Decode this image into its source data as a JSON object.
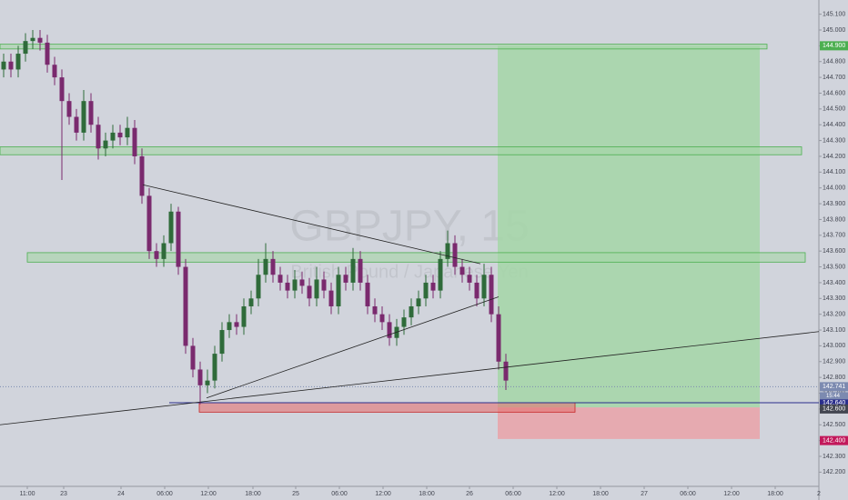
{
  "chart_data": {
    "type": "candlestick",
    "watermark_title": "GBPJPY, 15",
    "watermark_subtitle": "British Pound / Japanese Yen",
    "up_color": "#2f6b3a",
    "down_color": "#7a2a6e",
    "open": [
      144.75,
      144.8,
      144.75,
      144.85,
      144.93,
      144.95,
      144.92,
      144.78,
      144.7,
      144.55,
      144.45,
      144.35,
      144.55,
      144.4,
      144.25,
      144.3,
      144.35,
      144.32,
      144.38,
      144.2,
      143.95,
      143.6,
      143.55,
      143.65,
      143.85,
      143.5,
      143.0,
      142.85,
      142.75,
      142.78,
      142.95,
      143.1,
      143.15,
      143.12,
      143.25,
      143.3,
      143.45,
      143.55,
      143.45,
      143.4,
      143.35,
      143.42,
      143.38,
      143.3,
      143.42,
      143.35,
      143.25,
      143.45,
      143.4,
      143.55,
      143.4,
      143.25,
      143.2,
      143.15,
      143.05,
      143.12,
      143.18,
      143.25,
      143.3,
      143.4,
      143.35,
      143.55,
      143.65,
      143.5,
      143.45,
      143.4,
      143.3,
      143.45,
      143.2,
      142.9
    ],
    "high": [
      144.85,
      144.85,
      144.9,
      144.98,
      145.0,
      145.0,
      144.97,
      144.83,
      144.75,
      144.6,
      144.5,
      144.62,
      144.6,
      144.45,
      144.35,
      144.4,
      144.4,
      144.45,
      144.43,
      144.25,
      144.0,
      143.65,
      143.7,
      143.9,
      143.88,
      143.55,
      143.05,
      142.9,
      142.85,
      143.0,
      143.15,
      143.2,
      143.2,
      143.3,
      143.35,
      143.55,
      143.65,
      143.6,
      143.5,
      143.45,
      143.48,
      143.47,
      143.43,
      143.5,
      143.47,
      143.4,
      143.5,
      143.5,
      143.62,
      143.6,
      143.45,
      143.3,
      143.25,
      143.2,
      143.17,
      143.23,
      143.3,
      143.35,
      143.45,
      143.45,
      143.6,
      143.73,
      143.7,
      143.55,
      143.5,
      143.45,
      143.52,
      143.5,
      143.25,
      142.95
    ],
    "low": [
      144.7,
      144.7,
      144.7,
      144.8,
      144.88,
      144.87,
      144.73,
      144.65,
      144.05,
      144.4,
      144.3,
      144.3,
      144.35,
      144.18,
      144.2,
      144.25,
      144.27,
      144.27,
      144.15,
      143.9,
      143.55,
      143.5,
      143.5,
      143.6,
      143.45,
      142.95,
      142.8,
      142.63,
      142.7,
      142.73,
      142.9,
      143.05,
      143.07,
      143.07,
      143.2,
      143.25,
      143.4,
      143.4,
      143.35,
      143.3,
      143.3,
      143.33,
      143.25,
      143.25,
      143.3,
      143.2,
      143.2,
      143.35,
      143.35,
      143.35,
      143.2,
      143.15,
      143.1,
      143.0,
      143.0,
      143.07,
      143.13,
      143.2,
      143.25,
      143.3,
      143.3,
      143.5,
      143.45,
      143.4,
      143.35,
      143.25,
      143.25,
      143.15,
      142.85,
      142.72
    ],
    "close": [
      144.8,
      144.75,
      144.85,
      144.93,
      144.95,
      144.92,
      144.78,
      144.7,
      144.55,
      144.45,
      144.35,
      144.55,
      144.4,
      144.25,
      144.3,
      144.35,
      144.32,
      144.38,
      144.2,
      143.95,
      143.6,
      143.55,
      143.65,
      143.85,
      143.5,
      143.0,
      142.85,
      142.75,
      142.78,
      142.95,
      143.1,
      143.15,
      143.12,
      143.25,
      143.3,
      143.45,
      143.55,
      143.45,
      143.4,
      143.35,
      143.42,
      143.38,
      143.3,
      143.42,
      143.35,
      143.25,
      143.45,
      143.4,
      143.55,
      143.4,
      143.25,
      143.2,
      143.15,
      143.05,
      143.12,
      143.18,
      143.25,
      143.3,
      143.4,
      143.35,
      143.55,
      143.65,
      143.5,
      143.45,
      143.4,
      143.3,
      143.45,
      143.2,
      142.9,
      142.78
    ],
    "xlim": [
      -0.5,
      112
    ],
    "ylim": [
      142.11,
      145.19
    ],
    "xticks": [
      {
        "value": 3.25,
        "label": "11:00"
      },
      {
        "value": 8.25,
        "label": "23"
      },
      {
        "value": 16.125,
        "label": "24"
      },
      {
        "value": 22.125,
        "label": "06:00"
      },
      {
        "value": 28.125,
        "label": "12:00"
      },
      {
        "value": 34.25,
        "label": "18:00"
      },
      {
        "value": 40.125,
        "label": "25"
      },
      {
        "value": 46.125,
        "label": "06:00"
      },
      {
        "value": 52.125,
        "label": "12:00"
      },
      {
        "value": 58.125,
        "label": "18:00"
      },
      {
        "value": 64,
        "label": "26"
      },
      {
        "value": 70,
        "label": "06:00"
      },
      {
        "value": 76,
        "label": "12:00"
      },
      {
        "value": 82,
        "label": "18:00"
      },
      {
        "value": 88,
        "label": "27"
      },
      {
        "value": 94,
        "label": "06:00"
      },
      {
        "value": 100,
        "label": "12:00"
      },
      {
        "value": 106,
        "label": "18:00"
      },
      {
        "value": 112,
        "label": "2"
      }
    ],
    "yticks": [
      {
        "value": 142.2,
        "label": "142.200"
      },
      {
        "value": 142.3,
        "label": "142.300"
      },
      {
        "value": 142.4,
        "label": "142.400"
      },
      {
        "value": 142.5,
        "label": "142.500"
      },
      {
        "value": 142.6,
        "label": "142.600"
      },
      {
        "value": 142.7,
        "label": "142.700"
      },
      {
        "value": 142.8,
        "label": "142.800"
      },
      {
        "value": 142.9,
        "label": "142.900"
      },
      {
        "value": 143,
        "label": "143.000"
      },
      {
        "value": 143.1,
        "label": "143.100"
      },
      {
        "value": 143.2,
        "label": "143.200"
      },
      {
        "value": 143.3,
        "label": "143.300"
      },
      {
        "value": 143.4,
        "label": "143.400"
      },
      {
        "value": 143.5,
        "label": "143.500"
      },
      {
        "value": 143.6,
        "label": "143.600"
      },
      {
        "value": 143.7,
        "label": "143.700"
      },
      {
        "value": 143.8,
        "label": "143.800"
      },
      {
        "value": 143.9,
        "label": "143.900"
      },
      {
        "value": 144,
        "label": "144.000"
      },
      {
        "value": 144.1,
        "label": "144.100"
      },
      {
        "value": 144.2,
        "label": "144.200"
      },
      {
        "value": 144.3,
        "label": "144.300"
      },
      {
        "value": 144.4,
        "label": "144.400"
      },
      {
        "value": 144.5,
        "label": "144.500"
      },
      {
        "value": 144.6,
        "label": "144.600"
      },
      {
        "value": 144.7,
        "label": "144.700"
      },
      {
        "value": 144.8,
        "label": "144.800"
      },
      {
        "value": 144.9,
        "label": "144.900"
      },
      {
        "value": 145,
        "label": "145.000"
      },
      {
        "value": 145.1,
        "label": "145.100"
      }
    ],
    "zones": [
      {
        "x": [
          -0.5,
          104.875
        ],
        "y": [
          144.91,
          144.88
        ],
        "color": "#a5d6a7"
      },
      {
        "x": [
          -0.5,
          109.625
        ],
        "y": [
          144.26,
          144.21
        ],
        "color": "#a5d6a7"
      },
      {
        "x": [
          3.25,
          110.125
        ],
        "y": [
          143.59,
          143.53
        ],
        "color": "#a5d6a7"
      },
      {
        "x": [
          26.875,
          78.5
        ],
        "y": [
          142.64,
          142.58
        ],
        "color": "#e57373"
      }
    ],
    "position": {
      "x": [
        67.875,
        103.875
      ],
      "entry": 142.61,
      "target": 144.9,
      "stop": 142.41,
      "profit_color": "#a5d6a7",
      "loss_color": "#e8a5ab"
    },
    "trendlines": [
      {
        "x": [
          19.125,
          65.5
        ],
        "y": [
          144.02,
          143.52
        ],
        "color": "#222"
      },
      {
        "x": [
          27.875,
          68
        ],
        "y": [
          142.67,
          143.31
        ],
        "color": "#222"
      },
      {
        "x": [
          -0.5,
          112
        ],
        "y": [
          142.5,
          143.09
        ],
        "color": "#222"
      }
    ],
    "hline": {
      "value": 142.64,
      "color": "#2a2e8c"
    },
    "price_labels": [
      {
        "value": 144.9,
        "label": "144.900",
        "color": "#4caf50"
      },
      {
        "value": 142.741,
        "label": "142.741",
        "color": "#7c8ab0"
      },
      {
        "value": 142.64,
        "label": "142.640",
        "color": "#2a2e8c"
      },
      {
        "value": 142.6,
        "label": "142.600",
        "color": "#434651"
      },
      {
        "value": 142.4,
        "label": "142.400",
        "color": "#c2185b"
      }
    ],
    "countdown": "15:44"
  }
}
